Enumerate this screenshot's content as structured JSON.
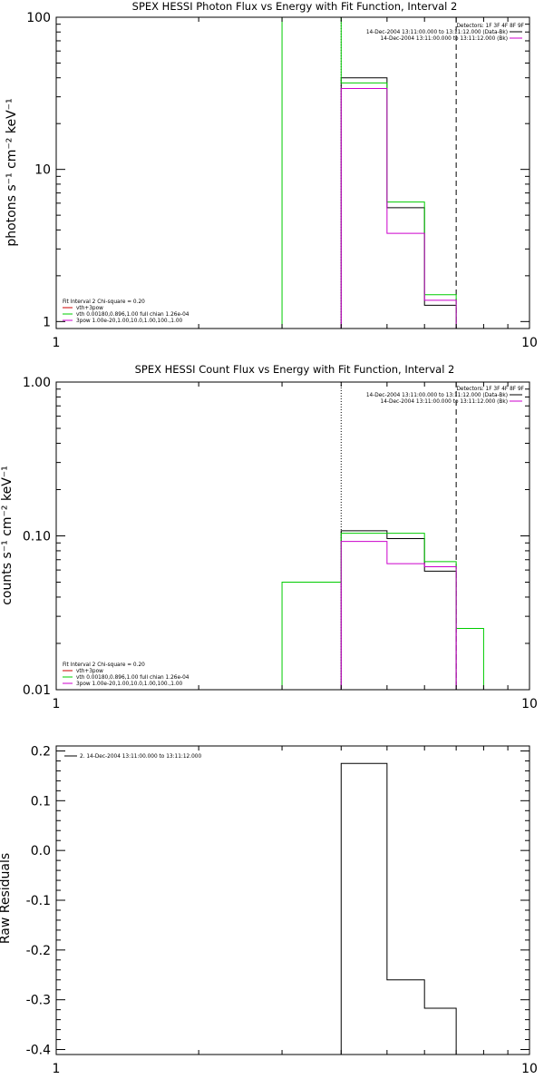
{
  "chart_data": [
    {
      "type": "line",
      "step": true,
      "title": "SPEX HESSI Photon Flux vs Energy with Fit Function, Interval 2",
      "ylabel": "photons s⁻¹ cm⁻² keV⁻¹",
      "xlabel": "",
      "xscale": "log",
      "yscale": "log",
      "xlim": [
        1,
        10
      ],
      "ylim": [
        0.9,
        100
      ],
      "x_ticks": [
        1,
        10
      ],
      "x_tick_labels": [
        "1",
        "10"
      ],
      "y_ticks": [
        1,
        10,
        100
      ],
      "y_tick_labels": [
        "1",
        "10",
        "100"
      ],
      "grid": false,
      "vlines": [
        {
          "x": 4,
          "style": "dotted",
          "color": "#000000"
        },
        {
          "x": 7,
          "style": "dashed",
          "color": "#000000"
        }
      ],
      "info_lines": [
        "Detectors: 1F 3F 4F 8F 9F",
        "14-Dec-2004 13:11:00.000 to 13:11:12.000 (Data-Bk)",
        "14-Dec-2004 13:11:00.000 to 13:11:12.000 (Bk)"
      ],
      "info_colors": [
        "#000000",
        "#000000",
        "#cc00cc"
      ],
      "legend": {
        "header": "Fit Interval 2   Chi-square = 0.20",
        "entries": [
          {
            "label": "vth+3pow",
            "color": "#cc0000"
          },
          {
            "label": "vth 0.00180,0.896,1.00  full chian 1.26e-04",
            "color": "#00cc00"
          },
          {
            "label": "3pow 1.00e-20,1.00,10.0,1.00,100.,1.00",
            "color": "#cc00cc"
          }
        ],
        "placement": "bottom-left"
      },
      "series": [
        {
          "color": "#000000",
          "edges": [
            4,
            5,
            6,
            7
          ],
          "values": [
            40,
            5.6,
            1.28
          ]
        },
        {
          "color": "#00cc00",
          "edges": [
            3,
            4,
            5,
            6,
            7
          ],
          "values": [
            100,
            37,
            6.1,
            1.5
          ]
        },
        {
          "color": "#cc00cc",
          "edges": [
            4,
            5,
            6,
            7
          ],
          "values": [
            34,
            3.8,
            1.38
          ]
        }
      ]
    },
    {
      "type": "line",
      "step": true,
      "title": "SPEX HESSI Count Flux vs Energy with Fit Function, Interval 2",
      "ylabel": "counts s⁻¹ cm⁻² keV⁻¹",
      "xlabel": "",
      "xscale": "log",
      "yscale": "log",
      "xlim": [
        1,
        10
      ],
      "ylim": [
        0.01,
        1.0
      ],
      "x_ticks": [
        1,
        10
      ],
      "x_tick_labels": [
        "1",
        "10"
      ],
      "y_ticks": [
        0.01,
        0.1,
        1.0
      ],
      "y_tick_labels": [
        "0.01",
        "0.10",
        "1.00"
      ],
      "grid": false,
      "vlines": [
        {
          "x": 4,
          "style": "dotted",
          "color": "#000000"
        },
        {
          "x": 7,
          "style": "dashed",
          "color": "#000000"
        }
      ],
      "info_lines": [
        "Detectors: 1F 3F 4F 8F 9F",
        "14-Dec-2004 13:11:00.000 to 13:11:12.000 (Data-Bk)",
        "14-Dec-2004 13:11:00.000 to 13:11:12.000 (Bk)"
      ],
      "info_colors": [
        "#000000",
        "#000000",
        "#cc00cc"
      ],
      "legend": {
        "header": "Fit Interval 2   Chi-square = 0.20",
        "entries": [
          {
            "label": "vth+3pow",
            "color": "#cc0000"
          },
          {
            "label": "vth 0.00180,0.896,1.00  full chian 1.26e-04",
            "color": "#00cc00"
          },
          {
            "label": "3pow 1.00e-20,1.00,10.0,1.00,100.,1.00",
            "color": "#cc00cc"
          }
        ],
        "placement": "bottom-left"
      },
      "series": [
        {
          "color": "#000000",
          "edges": [
            4,
            5,
            6,
            7
          ],
          "values": [
            0.108,
            0.096,
            0.059
          ]
        },
        {
          "color": "#00cc00",
          "edges": [
            3,
            4,
            5,
            6,
            7,
            8
          ],
          "values": [
            0.05,
            0.104,
            0.104,
            0.068,
            0.025
          ]
        },
        {
          "color": "#cc00cc",
          "edges": [
            4,
            5,
            6,
            7
          ],
          "values": [
            0.092,
            0.066,
            0.063
          ]
        }
      ]
    },
    {
      "type": "line",
      "step": true,
      "title": "",
      "ylabel": "Raw Residuals",
      "xlabel": "",
      "xscale": "log",
      "yscale": "linear",
      "xlim": [
        1,
        10
      ],
      "ylim": [
        -0.41,
        0.21
      ],
      "x_ticks": [
        1,
        10
      ],
      "x_tick_labels": [
        "1",
        "10"
      ],
      "y_ticks": [
        0.2,
        0.1,
        0.0,
        -0.1,
        -0.2,
        -0.3,
        -0.4
      ],
      "y_tick_labels": [
        "0.2",
        "0.1",
        "0.0",
        "-0.1",
        "-0.2",
        "-0.3",
        "-0.4"
      ],
      "grid": false,
      "vlines": [],
      "info_lines": [],
      "info_colors": [],
      "legend": {
        "header": "",
        "entries": [
          {
            "label": "2. 14-Dec-2004 13:11:00.000 to 13:11:12.000",
            "color": "#000000"
          }
        ],
        "placement": "top-left"
      },
      "series": [
        {
          "color": "#000000",
          "edges": [
            4,
            5,
            6,
            7
          ],
          "values": [
            0.175,
            -0.26,
            -0.317
          ]
        }
      ]
    }
  ]
}
